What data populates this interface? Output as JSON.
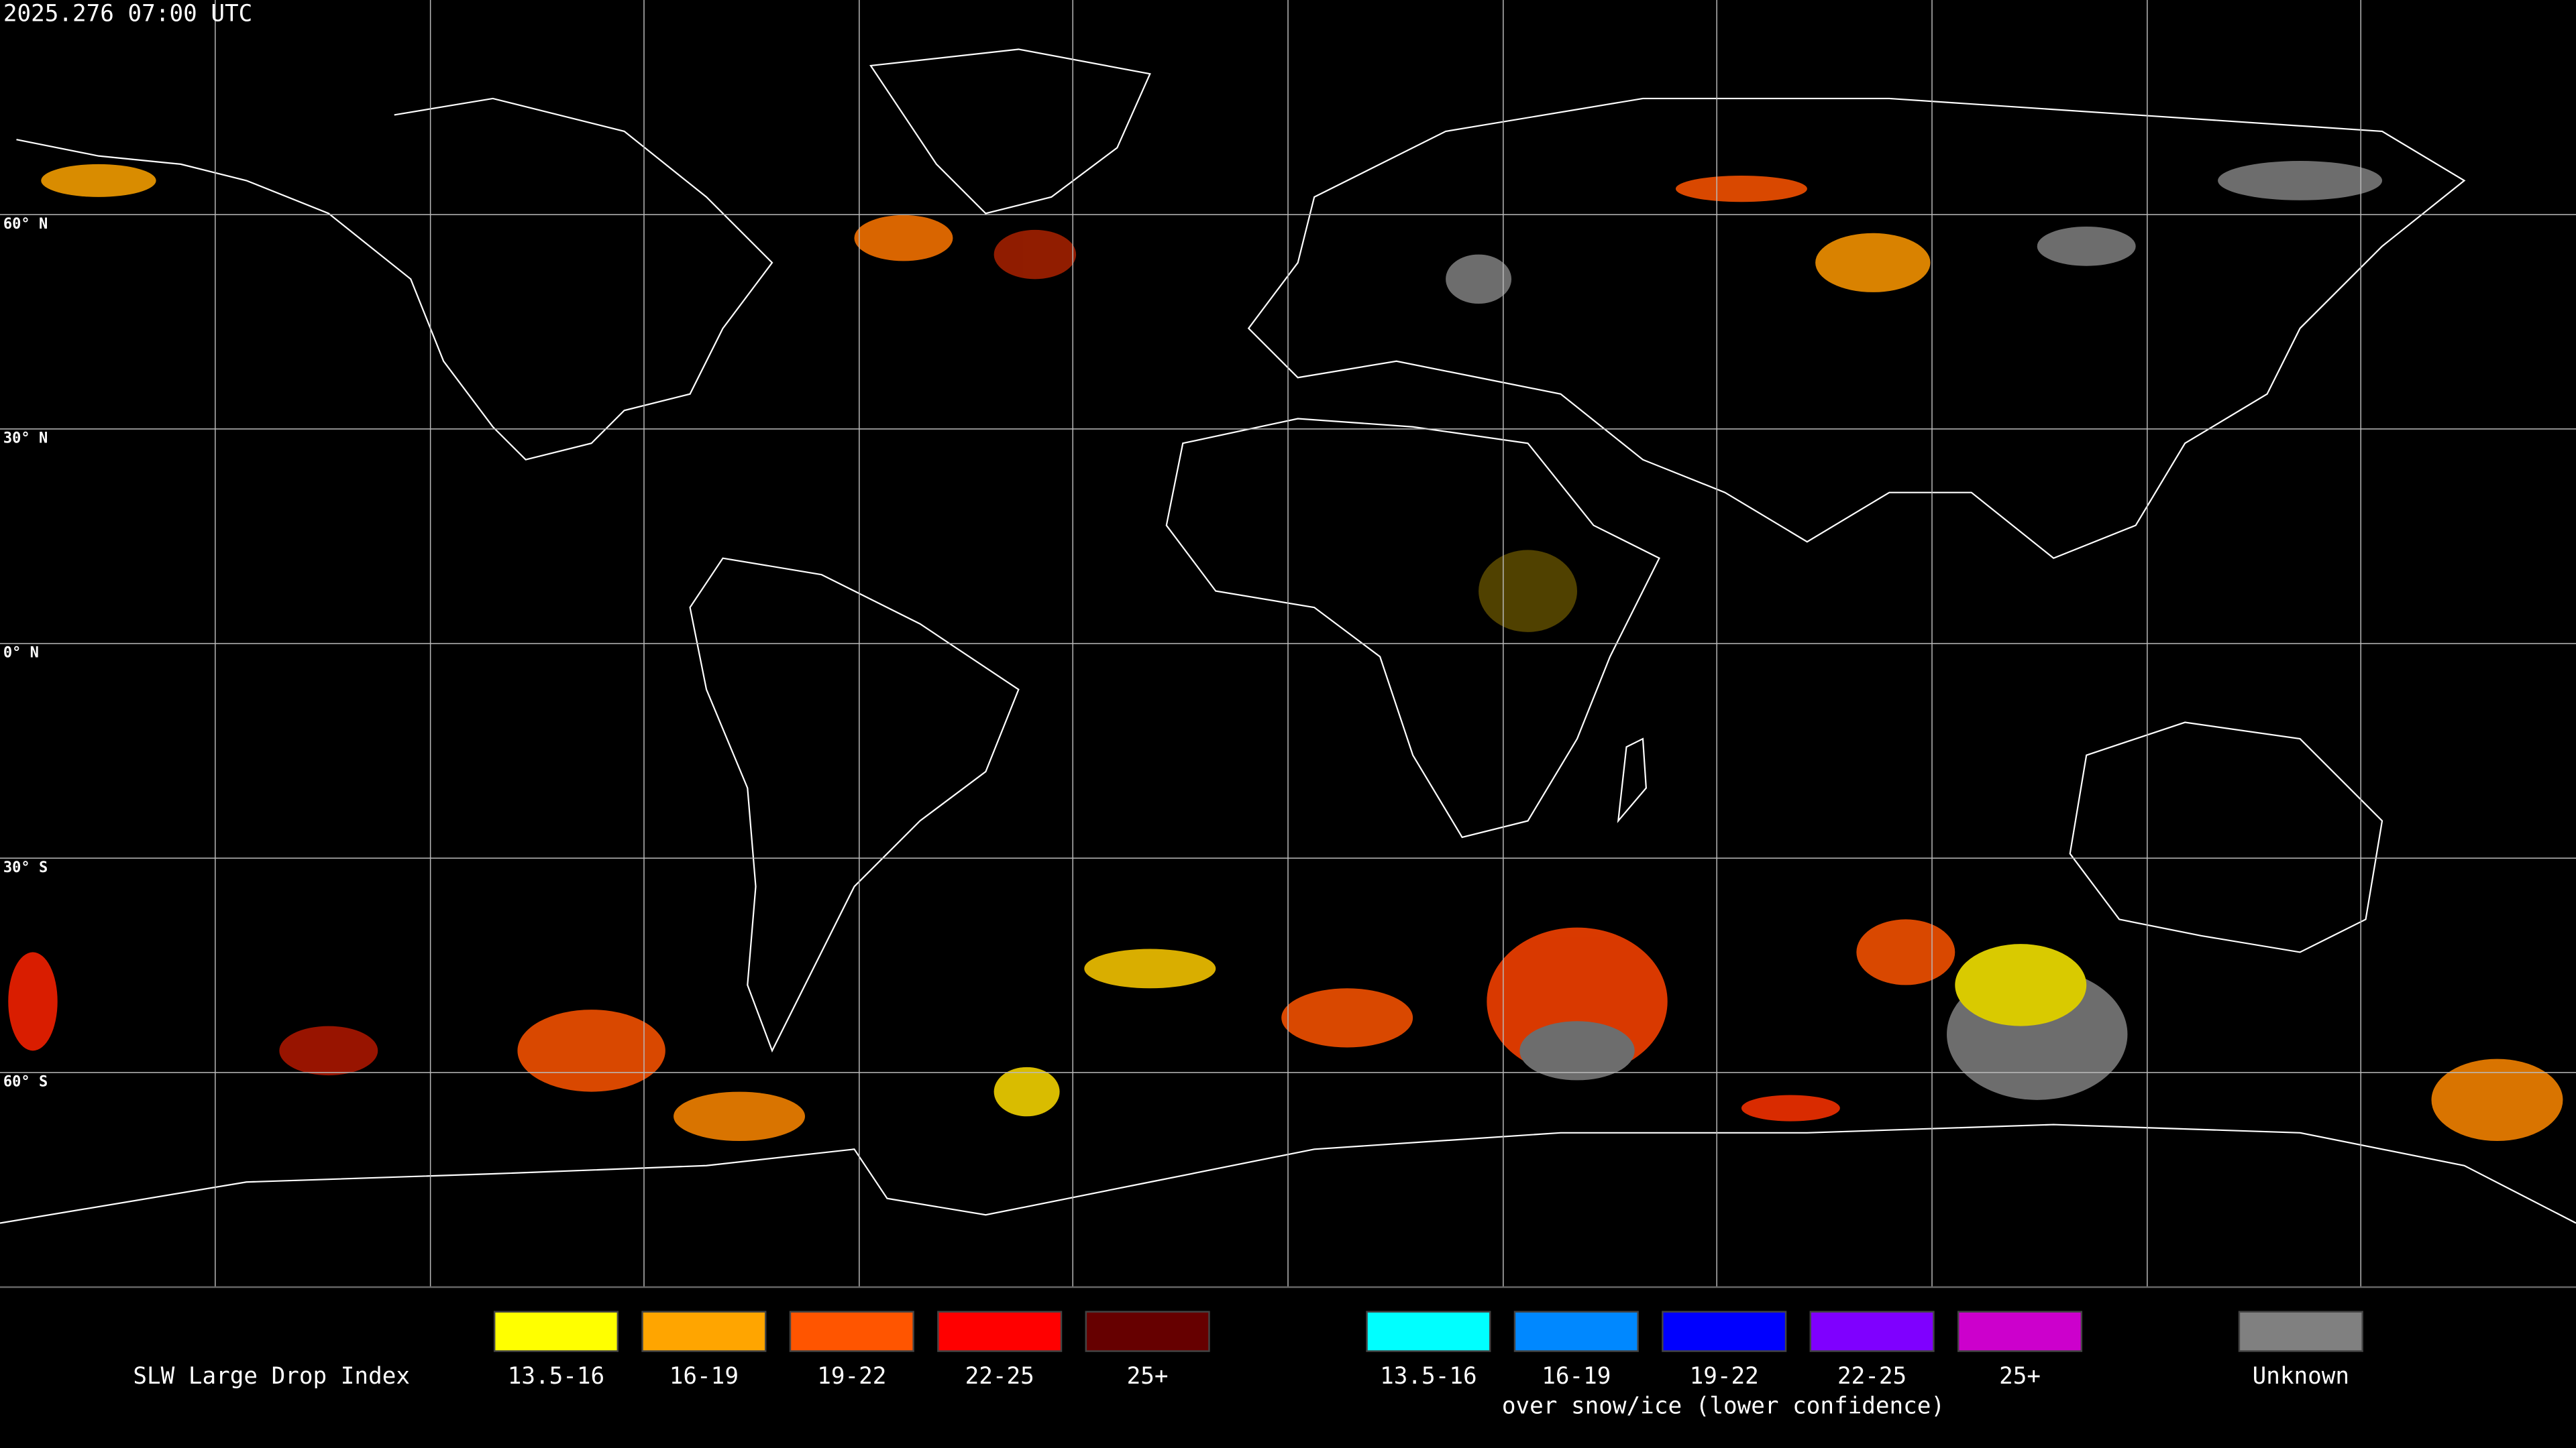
{
  "header": {
    "timestamp": "2025.276 07:00 UTC"
  },
  "map": {
    "lat_labels": [
      "60° N",
      "30° N",
      "0° N",
      "30° S",
      "60° S"
    ]
  },
  "legend": {
    "title": "SLW Large Drop Index",
    "normal": [
      {
        "label": "13.5-16",
        "color": "#ffff00"
      },
      {
        "label": "16-19",
        "color": "#ffa500"
      },
      {
        "label": "19-22",
        "color": "#ff5500"
      },
      {
        "label": "22-25",
        "color": "#ff0000"
      },
      {
        "label": "25+",
        "color": "#660000"
      }
    ],
    "snow_ice": [
      {
        "label": "13.5-16",
        "color": "#00ffff"
      },
      {
        "label": "16-19",
        "color": "#0088ff"
      },
      {
        "label": "19-22",
        "color": "#0000ff"
      },
      {
        "label": "22-25",
        "color": "#7f00ff"
      },
      {
        "label": "25+",
        "color": "#cc00cc"
      }
    ],
    "snow_ice_note": "over snow/ice (lower confidence)",
    "unknown": {
      "label": "Unknown",
      "color": "#808080"
    }
  }
}
